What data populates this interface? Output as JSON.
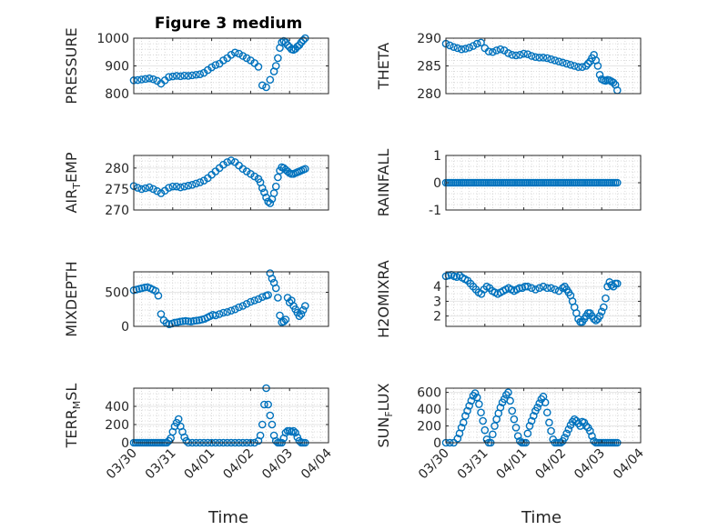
{
  "figure": {
    "title": "Figure 3 medium",
    "xlabel": "Time",
    "marker_color": "#0072BD",
    "xtick_labels": [
      "03/30",
      "03/31",
      "04/01",
      "04/02",
      "04/03",
      "04/04"
    ],
    "xlim": [
      0,
      5
    ],
    "grid": "minor dotted"
  },
  "chart_data": [
    {
      "type": "scatter",
      "ylabel": "PRESSURE",
      "ylim": [
        800,
        1000
      ],
      "yticks": [
        800,
        900,
        1000
      ],
      "x": [
        0,
        0.1,
        0.2,
        0.3,
        0.4,
        0.5,
        0.6,
        0.7,
        0.8,
        0.9,
        1.0,
        1.1,
        1.2,
        1.3,
        1.4,
        1.5,
        1.6,
        1.7,
        1.8,
        1.9,
        2.0,
        2.1,
        2.2,
        2.3,
        2.4,
        2.5,
        2.6,
        2.7,
        2.8,
        2.9,
        3.0,
        3.1,
        3.2,
        3.3,
        3.4,
        3.5,
        3.6,
        3.65,
        3.7,
        3.75,
        3.8,
        3.85,
        3.9,
        3.95,
        4.0,
        4.05,
        4.1,
        4.15,
        4.2,
        4.25,
        4.3,
        4.35,
        4.4
      ],
      "y": [
        848,
        849,
        851,
        853,
        855,
        852,
        846,
        836,
        848,
        860,
        862,
        864,
        863,
        865,
        864,
        866,
        868,
        870,
        875,
        885,
        895,
        903,
        908,
        920,
        928,
        940,
        948,
        944,
        936,
        928,
        920,
        910,
        897,
        830,
        823,
        850,
        880,
        900,
        928,
        965,
        985,
        990,
        985,
        975,
        968,
        960,
        958,
        962,
        970,
        975,
        985,
        993,
        1000
      ]
    },
    {
      "type": "scatter",
      "ylabel": "THETA",
      "ylim": [
        280,
        290
      ],
      "yticks": [
        280,
        285,
        290
      ],
      "x": [
        0,
        0.1,
        0.2,
        0.3,
        0.4,
        0.5,
        0.6,
        0.7,
        0.8,
        0.9,
        1.0,
        1.1,
        1.2,
        1.3,
        1.4,
        1.5,
        1.6,
        1.7,
        1.8,
        1.9,
        2.0,
        2.1,
        2.2,
        2.3,
        2.4,
        2.5,
        2.6,
        2.7,
        2.8,
        2.9,
        3.0,
        3.1,
        3.2,
        3.3,
        3.4,
        3.5,
        3.6,
        3.65,
        3.7,
        3.75,
        3.8,
        3.85,
        3.9,
        3.95,
        4.0,
        4.05,
        4.1,
        4.15,
        4.2,
        4.25,
        4.3,
        4.35,
        4.4
      ],
      "y": [
        289,
        288.7,
        288.4,
        288.2,
        288.0,
        288.1,
        288.3,
        288.6,
        289,
        289.2,
        288.2,
        287.6,
        287.5,
        287.8,
        288.0,
        287.8,
        287.3,
        287.0,
        286.9,
        287.0,
        287.2,
        287.1,
        286.8,
        286.6,
        286.5,
        286.5,
        286.4,
        286.2,
        286.0,
        285.8,
        285.6,
        285.4,
        285.2,
        285.0,
        284.8,
        284.8,
        285.0,
        285.4,
        285.8,
        286.4,
        287.0,
        286.0,
        285.0,
        283.4,
        282.6,
        282.4,
        282.3,
        282.5,
        282.4,
        282.2,
        282.0,
        281.6,
        280.6
      ]
    },
    {
      "type": "scatter",
      "ylabel": "AIR_TEMP",
      "ylim": [
        270,
        283
      ],
      "yticks": [
        270,
        275,
        280
      ],
      "x": [
        0,
        0.1,
        0.2,
        0.3,
        0.4,
        0.5,
        0.6,
        0.7,
        0.8,
        0.9,
        1.0,
        1.1,
        1.2,
        1.3,
        1.4,
        1.5,
        1.6,
        1.7,
        1.8,
        1.9,
        2.0,
        2.1,
        2.2,
        2.3,
        2.4,
        2.5,
        2.6,
        2.7,
        2.8,
        2.9,
        3.0,
        3.1,
        3.2,
        3.25,
        3.3,
        3.35,
        3.4,
        3.45,
        3.5,
        3.55,
        3.6,
        3.65,
        3.7,
        3.75,
        3.8,
        3.85,
        3.9,
        3.95,
        4.0,
        4.05,
        4.1,
        4.15,
        4.2,
        4.25,
        4.3,
        4.35,
        4.4
      ],
      "y": [
        275.7,
        275.3,
        275.0,
        275.2,
        275.4,
        275.0,
        274.5,
        274.0,
        274.6,
        275.3,
        275.6,
        275.6,
        275.4,
        275.6,
        275.8,
        276.0,
        276.3,
        276.6,
        277.0,
        277.6,
        278.4,
        279.2,
        280.0,
        280.8,
        281.4,
        281.8,
        281.4,
        280.6,
        279.8,
        279.2,
        278.6,
        278.0,
        277.4,
        276.6,
        275.2,
        274.2,
        273.0,
        272.0,
        271.6,
        272.6,
        274.0,
        275.6,
        277.8,
        279.4,
        280.2,
        280.0,
        279.6,
        279.2,
        278.8,
        278.6,
        278.6,
        278.8,
        279.0,
        279.2,
        279.4,
        279.6,
        279.8
      ]
    },
    {
      "type": "scatter",
      "ylabel": "RAINFALL",
      "ylim": [
        -1,
        1
      ],
      "yticks": [
        -1,
        0,
        1
      ],
      "x_range": [
        0,
        4.4
      ],
      "x_step": 0.05,
      "constant_value": 0
    },
    {
      "type": "scatter",
      "ylabel": "MIXDEPTH",
      "ylim": [
        0,
        800
      ],
      "yticks": [
        0,
        500
      ],
      "x": [
        0,
        0.07,
        0.14,
        0.21,
        0.28,
        0.35,
        0.42,
        0.49,
        0.56,
        0.63,
        0.7,
        0.77,
        0.84,
        0.91,
        0.98,
        1.05,
        1.12,
        1.19,
        1.26,
        1.33,
        1.4,
        1.47,
        1.54,
        1.61,
        1.68,
        1.75,
        1.82,
        1.89,
        1.96,
        2.03,
        2.1,
        2.2,
        2.3,
        2.4,
        2.5,
        2.6,
        2.7,
        2.8,
        2.9,
        3.0,
        3.1,
        3.2,
        3.3,
        3.4,
        3.45,
        3.5,
        3.55,
        3.6,
        3.65,
        3.7,
        3.75,
        3.8,
        3.85,
        3.9,
        3.95,
        4.0,
        4.05,
        4.1,
        4.15,
        4.2,
        4.25,
        4.3,
        4.35,
        4.4
      ],
      "y": [
        530,
        540,
        550,
        560,
        570,
        575,
        560,
        540,
        520,
        450,
        180,
        90,
        50,
        30,
        40,
        55,
        60,
        70,
        75,
        80,
        75,
        70,
        80,
        85,
        90,
        100,
        110,
        130,
        150,
        170,
        160,
        180,
        200,
        210,
        230,
        250,
        280,
        300,
        330,
        360,
        380,
        400,
        430,
        450,
        460,
        780,
        700,
        640,
        560,
        420,
        160,
        60,
        70,
        100,
        420,
        350,
        380,
        300,
        250,
        200,
        150,
        180,
        240,
        300
      ]
    },
    {
      "type": "scatter",
      "ylabel": "H2OMIXRA",
      "ylim": [
        1.3,
        5
      ],
      "yticks": [
        2,
        3,
        4
      ],
      "x": [
        0,
        0.07,
        0.14,
        0.21,
        0.28,
        0.35,
        0.42,
        0.49,
        0.56,
        0.63,
        0.7,
        0.77,
        0.84,
        0.91,
        0.98,
        1.05,
        1.12,
        1.19,
        1.26,
        1.33,
        1.4,
        1.47,
        1.54,
        1.61,
        1.68,
        1.75,
        1.82,
        1.89,
        1.96,
        2.03,
        2.1,
        2.2,
        2.3,
        2.4,
        2.5,
        2.6,
        2.7,
        2.8,
        2.9,
        3.0,
        3.05,
        3.1,
        3.15,
        3.2,
        3.25,
        3.3,
        3.35,
        3.4,
        3.45,
        3.5,
        3.55,
        3.6,
        3.65,
        3.7,
        3.75,
        3.8,
        3.85,
        3.9,
        3.95,
        4.0,
        4.05,
        4.1,
        4.15,
        4.2,
        4.25,
        4.3,
        4.35,
        4.4
      ],
      "y": [
        4.7,
        4.75,
        4.8,
        4.7,
        4.65,
        4.75,
        4.6,
        4.5,
        4.4,
        4.2,
        4.0,
        3.8,
        3.6,
        3.5,
        3.8,
        4.0,
        3.9,
        3.7,
        3.6,
        3.5,
        3.6,
        3.7,
        3.8,
        3.9,
        3.8,
        3.7,
        3.8,
        3.9,
        3.9,
        4.0,
        4.0,
        3.9,
        3.8,
        3.9,
        4.0,
        3.9,
        3.9,
        3.8,
        3.7,
        3.9,
        4.0,
        3.8,
        3.6,
        3.4,
        3.0,
        2.6,
        2.2,
        1.8,
        1.6,
        1.6,
        1.8,
        2.0,
        2.2,
        2.2,
        2.0,
        1.8,
        1.7,
        1.8,
        2.0,
        2.3,
        2.6,
        3.2,
        4.0,
        4.3,
        4.1,
        4.0,
        4.2,
        4.2
      ]
    },
    {
      "type": "scatter",
      "ylabel": "TERR_MSL",
      "ylim": [
        0,
        600
      ],
      "yticks": [
        0,
        200,
        400
      ],
      "x": [
        0,
        0.05,
        0.1,
        0.15,
        0.2,
        0.25,
        0.3,
        0.35,
        0.4,
        0.45,
        0.5,
        0.55,
        0.6,
        0.65,
        0.7,
        0.75,
        0.8,
        0.85,
        0.9,
        0.95,
        1.0,
        1.05,
        1.1,
        1.15,
        1.2,
        1.25,
        1.3,
        1.35,
        1.4,
        1.5,
        1.6,
        1.7,
        1.8,
        1.9,
        2.0,
        2.1,
        2.2,
        2.3,
        2.4,
        2.5,
        2.6,
        2.7,
        2.8,
        2.9,
        3.0,
        3.1,
        3.2,
        3.25,
        3.3,
        3.35,
        3.4,
        3.45,
        3.5,
        3.55,
        3.6,
        3.65,
        3.7,
        3.75,
        3.8,
        3.85,
        3.9,
        3.95,
        4.0,
        4.05,
        4.1,
        4.15,
        4.2,
        4.25,
        4.3,
        4.35,
        4.4
      ],
      "y": [
        0,
        0,
        0,
        0,
        0,
        0,
        0,
        0,
        0,
        0,
        0,
        0,
        0,
        0,
        0,
        0,
        0,
        0,
        20,
        50,
        120,
        180,
        220,
        260,
        180,
        120,
        60,
        20,
        0,
        0,
        0,
        0,
        0,
        0,
        0,
        0,
        0,
        0,
        0,
        0,
        0,
        0,
        0,
        0,
        0,
        0,
        20,
        80,
        200,
        420,
        600,
        420,
        300,
        200,
        80,
        20,
        0,
        0,
        0,
        50,
        110,
        130,
        130,
        120,
        130,
        110,
        60,
        20,
        0,
        0,
        0
      ]
    },
    {
      "type": "scatter",
      "ylabel": "SUN_FLUX",
      "ylim": [
        0,
        650
      ],
      "yticks": [
        0,
        200,
        400,
        600
      ],
      "x": [
        0,
        0.1,
        0.2,
        0.3,
        0.35,
        0.4,
        0.45,
        0.5,
        0.55,
        0.6,
        0.65,
        0.7,
        0.75,
        0.8,
        0.85,
        0.9,
        0.95,
        1.0,
        1.05,
        1.1,
        1.15,
        1.2,
        1.25,
        1.3,
        1.35,
        1.4,
        1.45,
        1.5,
        1.55,
        1.6,
        1.65,
        1.7,
        1.75,
        1.8,
        1.85,
        1.9,
        1.95,
        2.0,
        2.05,
        2.1,
        2.15,
        2.2,
        2.25,
        2.3,
        2.35,
        2.4,
        2.45,
        2.5,
        2.55,
        2.6,
        2.65,
        2.7,
        2.75,
        2.8,
        2.85,
        2.9,
        2.95,
        3.0,
        3.05,
        3.1,
        3.15,
        3.2,
        3.25,
        3.3,
        3.35,
        3.4,
        3.45,
        3.5,
        3.55,
        3.6,
        3.65,
        3.7,
        3.75,
        3.8,
        3.85,
        3.9,
        3.95,
        4.0,
        4.05,
        4.1,
        4.15,
        4.2,
        4.25,
        4.3,
        4.35,
        4.4
      ],
      "y": [
        0,
        0,
        0,
        50,
        110,
        180,
        240,
        320,
        380,
        440,
        500,
        560,
        590,
        540,
        460,
        360,
        260,
        150,
        40,
        0,
        0,
        100,
        200,
        280,
        350,
        420,
        480,
        520,
        570,
        600,
        500,
        380,
        280,
        180,
        80,
        20,
        0,
        0,
        0,
        110,
        200,
        260,
        320,
        380,
        420,
        470,
        520,
        550,
        480,
        360,
        240,
        140,
        40,
        0,
        0,
        0,
        0,
        20,
        60,
        110,
        160,
        210,
        250,
        280,
        260,
        230,
        200,
        250,
        240,
        200,
        180,
        140,
        80,
        20,
        0,
        0,
        0,
        0,
        0,
        0,
        0,
        0,
        0,
        0,
        0,
        0
      ]
    }
  ]
}
